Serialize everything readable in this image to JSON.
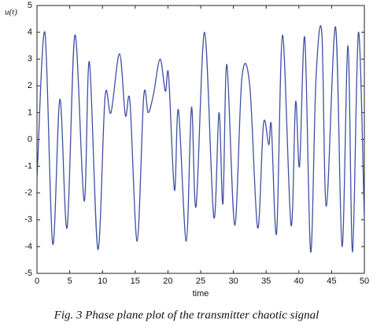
{
  "chart_data": {
    "type": "line",
    "y_label": "u(t)",
    "x_label": "time",
    "caption": "Fig. 3 Phase plane plot of the transmitter chaotic signal",
    "color": "#3f51a3",
    "x": [
      0,
      1.2,
      2.4,
      3.5,
      4.6,
      5.8,
      7.2,
      8,
      9.3,
      10.4,
      11.3,
      12.6,
      13.5,
      14.2,
      15.3,
      16.3,
      17,
      17.8,
      18.8,
      19.6,
      20.1,
      21,
      21.6,
      22.8,
      23.6,
      24.3,
      25.6,
      27,
      27.8,
      28.4,
      29,
      30.2,
      31.3,
      32.5,
      33.7,
      34.6,
      35.4,
      35.8,
      36.6,
      37.5,
      38.8,
      39.5,
      40.1,
      40.9,
      41.8,
      42.6,
      43.5,
      44.2,
      45.6,
      46.6,
      47.5,
      48.2,
      49.1,
      50
    ],
    "values": [
      -1.5,
      4,
      -3.9,
      1.5,
      -3.3,
      3.9,
      -2.3,
      2.9,
      -4.1,
      1.6,
      1.0,
      3.2,
      0.9,
      1.4,
      -3.8,
      1.6,
      1.0,
      1.7,
      3.0,
      1.8,
      2.4,
      -1.9,
      1.1,
      -3.8,
      1.2,
      -2.5,
      4.0,
      -2.9,
      1.0,
      -2.4,
      2.8,
      -3.2,
      2.3,
      2.0,
      -3.3,
      0.6,
      -0.2,
      0.5,
      -3.5,
      3.9,
      -3.2,
      1.4,
      -1.0,
      3.8,
      -4.2,
      2.2,
      4.0,
      -2.5,
      4.2,
      -4.0,
      3.5,
      -4.2,
      4.0,
      -3.0
    ],
    "xlim": [
      0,
      50
    ],
    "xticks": [
      0,
      5,
      10,
      15,
      20,
      25,
      30,
      35,
      40,
      45,
      50
    ],
    "ylim": [
      -5,
      5
    ],
    "yticks": [
      -5,
      -4,
      -3,
      -2,
      -1,
      0,
      1,
      2,
      3,
      4,
      5
    ]
  }
}
